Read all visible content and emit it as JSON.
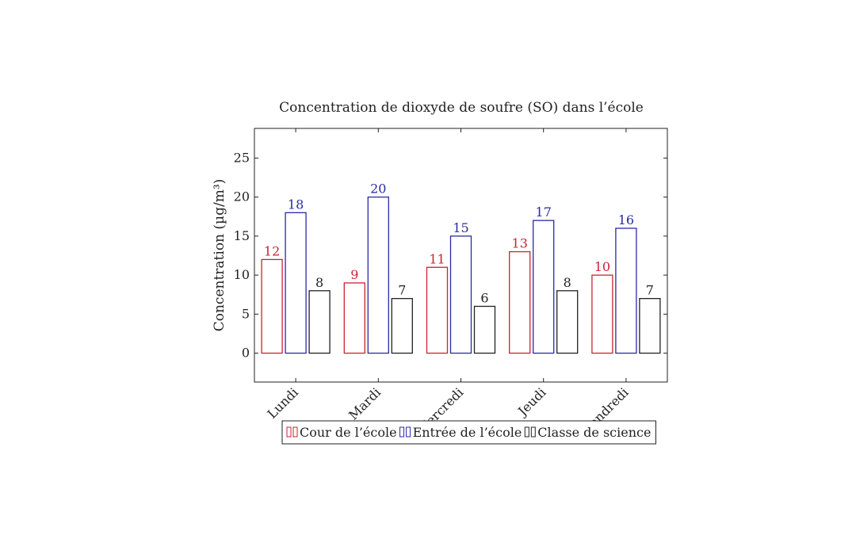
{
  "chart_data": {
    "type": "bar",
    "title": "Concentration de dioxyde de soufre (SO) dans l’école",
    "xlabel": "",
    "ylabel": "Concentration (µg/m³)",
    "categories": [
      "Lundi",
      "Mardi",
      "Mercredi",
      "Jeudi",
      "Vendredi"
    ],
    "series": [
      {
        "name": "Cour de l’école",
        "color": "#cc2233",
        "values": [
          12,
          9,
          11,
          13,
          10
        ]
      },
      {
        "name": "Entrée de l’école",
        "color": "#2a2aa8",
        "values": [
          18,
          20,
          15,
          17,
          16
        ]
      },
      {
        "name": "Classe de science",
        "color": "#222222",
        "values": [
          8,
          7,
          6,
          8,
          7
        ]
      }
    ],
    "ylim": [
      -3.7,
      28.8
    ],
    "yticks": [
      0,
      5,
      10,
      15,
      20,
      25
    ],
    "grid": false,
    "legend_position": "bottom"
  }
}
